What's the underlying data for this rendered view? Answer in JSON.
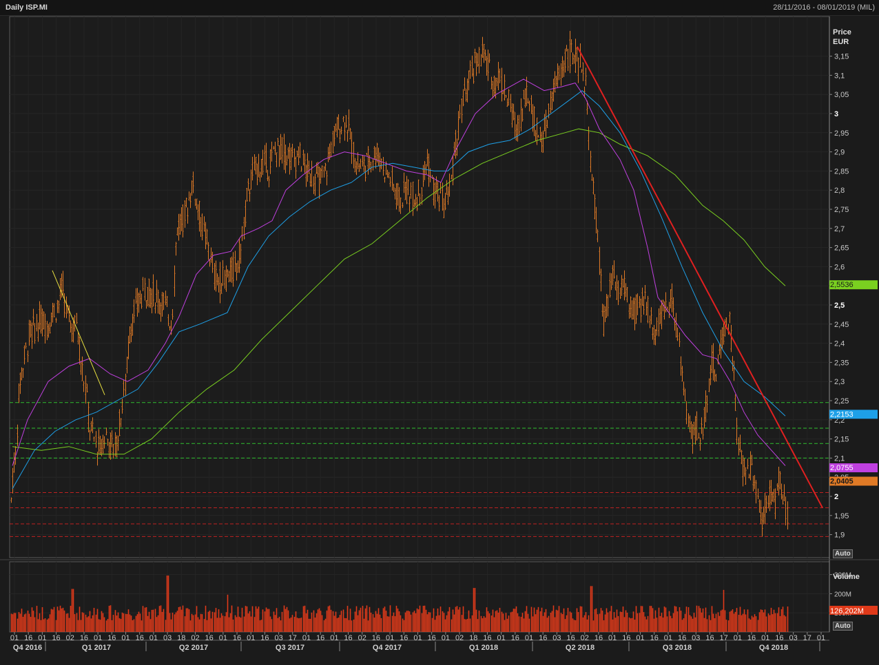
{
  "header": {
    "title": "Daily ISP.MI",
    "date_range": "28/11/2016 - 08/01/2019 (MIL)"
  },
  "controls": {
    "auto_price": "Auto",
    "auto_volume": "Auto"
  },
  "colors": {
    "candle": "#e07a26",
    "ma_short": "#c040e0",
    "ma_mid": "#1ea0e8",
    "ma_long": "#7ad020",
    "trend_red": "#e02020",
    "trend_yellow": "#e8e040",
    "support": "#30c030",
    "resistance": "#c02020",
    "volume": "#e03a1a"
  },
  "chart_data": {
    "type": "candlestick",
    "price_axis": {
      "label": "Price",
      "unit": "EUR",
      "ticks": [
        "3,15",
        "3,1",
        "3,05",
        "3",
        "2,95",
        "2,9",
        "2,85",
        "2,8",
        "2,75",
        "2,7",
        "2,65",
        "2,6",
        "2,55",
        "2,5",
        "2,45",
        "2,4",
        "2,35",
        "2,3",
        "2,25",
        "2,2",
        "2,15",
        "2,1",
        "2,05",
        "2",
        "1,95",
        "1,9"
      ],
      "bold_ticks": [
        "3",
        "2,5",
        "2"
      ],
      "range": [
        1.86,
        3.22
      ]
    },
    "volume_axis": {
      "label": "Volume",
      "ticks": [
        "300M",
        "200M",
        "100M"
      ],
      "range": [
        0,
        360
      ]
    },
    "x_axis": {
      "day_ticks": [
        "01",
        "16",
        "01",
        "16",
        "02",
        "16",
        "01",
        "16",
        "01",
        "16",
        "01",
        "03",
        "18",
        "02",
        "16",
        "01",
        "16",
        "01",
        "16",
        "03",
        "17",
        "01",
        "16",
        "01",
        "16",
        "02",
        "16",
        "01",
        "16",
        "01",
        "16",
        "01",
        "02",
        "18",
        "16",
        "01",
        "16",
        "01",
        "16",
        "03",
        "16",
        "02",
        "16",
        "01",
        "16",
        "01",
        "16",
        "01",
        "16",
        "03",
        "16",
        "17",
        "01",
        "16",
        "01",
        "16",
        "03",
        "17",
        "01"
      ],
      "quarters": [
        "Q4 2016",
        "Q1 2017",
        "Q2 2017",
        "Q3 2017",
        "Q4 2017",
        "Q1 2018",
        "Q2 2018",
        "Q3 2018",
        "Q4 2018"
      ]
    },
    "price_path": [
      [
        0,
        1.93
      ],
      [
        4,
        2.05
      ],
      [
        8,
        2.1
      ],
      [
        14,
        2.3
      ],
      [
        20,
        2.35
      ],
      [
        28,
        2.42
      ],
      [
        36,
        2.44
      ],
      [
        46,
        2.46
      ],
      [
        55,
        2.45
      ],
      [
        62,
        2.48
      ],
      [
        70,
        2.5
      ],
      [
        76,
        2.55
      ],
      [
        82,
        2.48
      ],
      [
        90,
        2.44
      ],
      [
        97,
        2.45
      ],
      [
        104,
        2.34
      ],
      [
        110,
        2.28
      ],
      [
        116,
        2.18
      ],
      [
        122,
        2.15
      ],
      [
        130,
        2.12
      ],
      [
        138,
        2.16
      ],
      [
        146,
        2.14
      ],
      [
        153,
        2.12
      ],
      [
        160,
        2.2
      ],
      [
        168,
        2.3
      ],
      [
        175,
        2.45
      ],
      [
        185,
        2.5
      ],
      [
        195,
        2.54
      ],
      [
        205,
        2.53
      ],
      [
        215,
        2.52
      ],
      [
        225,
        2.5
      ],
      [
        235,
        2.45
      ],
      [
        242,
        2.7
      ],
      [
        250,
        2.72
      ],
      [
        258,
        2.76
      ],
      [
        265,
        2.82
      ],
      [
        272,
        2.76
      ],
      [
        280,
        2.7
      ],
      [
        288,
        2.65
      ],
      [
        296,
        2.58
      ],
      [
        304,
        2.56
      ],
      [
        312,
        2.57
      ],
      [
        320,
        2.58
      ],
      [
        328,
        2.6
      ],
      [
        336,
        2.65
      ],
      [
        344,
        2.78
      ],
      [
        352,
        2.84
      ],
      [
        360,
        2.86
      ],
      [
        368,
        2.87
      ],
      [
        376,
        2.86
      ],
      [
        384,
        2.9
      ],
      [
        392,
        2.91
      ],
      [
        400,
        2.9
      ],
      [
        410,
        2.88
      ],
      [
        420,
        2.89
      ],
      [
        430,
        2.85
      ],
      [
        440,
        2.84
      ],
      [
        450,
        2.82
      ],
      [
        458,
        2.85
      ],
      [
        465,
        2.9
      ],
      [
        472,
        2.95
      ],
      [
        480,
        2.97
      ],
      [
        488,
        2.99
      ],
      [
        495,
        2.93
      ],
      [
        502,
        2.87
      ],
      [
        510,
        2.86
      ],
      [
        518,
        2.87
      ],
      [
        526,
        2.89
      ],
      [
        534,
        2.9
      ],
      [
        542,
        2.86
      ],
      [
        550,
        2.84
      ],
      [
        558,
        2.8
      ],
      [
        566,
        2.77
      ],
      [
        574,
        2.8
      ],
      [
        582,
        2.79
      ],
      [
        590,
        2.78
      ],
      [
        598,
        2.82
      ],
      [
        606,
        2.88
      ],
      [
        614,
        2.8
      ],
      [
        622,
        2.79
      ],
      [
        630,
        2.76
      ],
      [
        638,
        2.8
      ],
      [
        646,
        2.9
      ],
      [
        654,
        3.0
      ],
      [
        662,
        3.06
      ],
      [
        670,
        3.1
      ],
      [
        678,
        3.14
      ],
      [
        686,
        3.16
      ],
      [
        694,
        3.12
      ],
      [
        702,
        3.08
      ],
      [
        710,
        3.1
      ],
      [
        718,
        3.06
      ],
      [
        726,
        3.02
      ],
      [
        734,
        2.96
      ],
      [
        742,
        3.0
      ],
      [
        750,
        3.06
      ],
      [
        758,
        3.0
      ],
      [
        766,
        2.95
      ],
      [
        774,
        2.93
      ],
      [
        782,
        3.0
      ],
      [
        790,
        3.06
      ],
      [
        798,
        3.1
      ],
      [
        806,
        3.15
      ],
      [
        814,
        3.16
      ],
      [
        822,
        3.14
      ],
      [
        830,
        3.12
      ],
      [
        838,
        3.05
      ],
      [
        844,
        2.82
      ],
      [
        850,
        2.75
      ],
      [
        856,
        2.6
      ],
      [
        862,
        2.45
      ],
      [
        868,
        2.5
      ],
      [
        875,
        2.58
      ],
      [
        882,
        2.52
      ],
      [
        890,
        2.56
      ],
      [
        898,
        2.5
      ],
      [
        906,
        2.47
      ],
      [
        914,
        2.5
      ],
      [
        922,
        2.52
      ],
      [
        930,
        2.46
      ],
      [
        938,
        2.43
      ],
      [
        946,
        2.47
      ],
      [
        954,
        2.5
      ],
      [
        960,
        2.55
      ],
      [
        966,
        2.44
      ],
      [
        972,
        2.4
      ],
      [
        978,
        2.28
      ],
      [
        984,
        2.2
      ],
      [
        990,
        2.16
      ],
      [
        996,
        2.18
      ],
      [
        1002,
        2.15
      ],
      [
        1008,
        2.2
      ],
      [
        1014,
        2.3
      ],
      [
        1020,
        2.35
      ],
      [
        1026,
        2.32
      ],
      [
        1032,
        2.4
      ],
      [
        1038,
        2.45
      ],
      [
        1044,
        2.46
      ],
      [
        1050,
        2.35
      ],
      [
        1056,
        2.14
      ],
      [
        1062,
        2.1
      ],
      [
        1068,
        2.05
      ],
      [
        1074,
        2.08
      ],
      [
        1080,
        2.06
      ],
      [
        1086,
        2.0
      ],
      [
        1092,
        1.94
      ],
      [
        1098,
        1.99
      ],
      [
        1104,
        2.02
      ],
      [
        1110,
        1.97
      ],
      [
        1116,
        2.05
      ],
      [
        1122,
        2.0
      ],
      [
        1128,
        1.95
      ],
      [
        1134,
        1.9
      ],
      [
        1140,
        1.96
      ],
      [
        1144,
        2.04
      ]
    ],
    "ma_short": [
      [
        18,
        2.08
      ],
      [
        40,
        2.2
      ],
      [
        70,
        2.3
      ],
      [
        100,
        2.34
      ],
      [
        130,
        2.36
      ],
      [
        160,
        2.32
      ],
      [
        185,
        2.3
      ],
      [
        215,
        2.33
      ],
      [
        240,
        2.4
      ],
      [
        260,
        2.47
      ],
      [
        285,
        2.58
      ],
      [
        310,
        2.63
      ],
      [
        335,
        2.64
      ],
      [
        350,
        2.68
      ],
      [
        375,
        2.7
      ],
      [
        395,
        2.72
      ],
      [
        415,
        2.8
      ],
      [
        440,
        2.84
      ],
      [
        470,
        2.88
      ],
      [
        500,
        2.9
      ],
      [
        530,
        2.89
      ],
      [
        560,
        2.87
      ],
      [
        590,
        2.85
      ],
      [
        620,
        2.84
      ],
      [
        640,
        2.82
      ],
      [
        660,
        2.9
      ],
      [
        690,
        3.0
      ],
      [
        720,
        3.05
      ],
      [
        740,
        3.07
      ],
      [
        760,
        3.09
      ],
      [
        790,
        3.06
      ],
      [
        815,
        3.07
      ],
      [
        835,
        3.08
      ],
      [
        850,
        3.04
      ],
      [
        870,
        2.96
      ],
      [
        900,
        2.88
      ],
      [
        920,
        2.8
      ],
      [
        940,
        2.65
      ],
      [
        955,
        2.52
      ],
      [
        975,
        2.47
      ],
      [
        995,
        2.42
      ],
      [
        1020,
        2.37
      ],
      [
        1040,
        2.36
      ],
      [
        1060,
        2.3
      ],
      [
        1080,
        2.22
      ],
      [
        1100,
        2.16
      ],
      [
        1120,
        2.12
      ],
      [
        1140,
        2.08
      ]
    ],
    "ma_mid": [
      [
        18,
        2.02
      ],
      [
        50,
        2.12
      ],
      [
        80,
        2.17
      ],
      [
        110,
        2.2
      ],
      [
        140,
        2.22
      ],
      [
        170,
        2.25
      ],
      [
        200,
        2.28
      ],
      [
        230,
        2.35
      ],
      [
        260,
        2.43
      ],
      [
        290,
        2.45
      ],
      [
        330,
        2.48
      ],
      [
        360,
        2.6
      ],
      [
        390,
        2.68
      ],
      [
        420,
        2.73
      ],
      [
        450,
        2.77
      ],
      [
        480,
        2.8
      ],
      [
        510,
        2.82
      ],
      [
        540,
        2.86
      ],
      [
        570,
        2.87
      ],
      [
        600,
        2.86
      ],
      [
        630,
        2.85
      ],
      [
        650,
        2.85
      ],
      [
        680,
        2.9
      ],
      [
        710,
        2.92
      ],
      [
        740,
        2.93
      ],
      [
        770,
        2.96
      ],
      [
        800,
        3.0
      ],
      [
        830,
        3.04
      ],
      [
        845,
        3.06
      ],
      [
        870,
        3.02
      ],
      [
        900,
        2.95
      ],
      [
        930,
        2.85
      ],
      [
        960,
        2.73
      ],
      [
        990,
        2.6
      ],
      [
        1020,
        2.48
      ],
      [
        1050,
        2.38
      ],
      [
        1080,
        2.3
      ],
      [
        1110,
        2.26
      ],
      [
        1140,
        2.21
      ]
    ],
    "ma_long": [
      [
        18,
        2.13
      ],
      [
        60,
        2.12
      ],
      [
        100,
        2.13
      ],
      [
        140,
        2.11
      ],
      [
        180,
        2.11
      ],
      [
        220,
        2.15
      ],
      [
        260,
        2.22
      ],
      [
        300,
        2.28
      ],
      [
        340,
        2.33
      ],
      [
        380,
        2.41
      ],
      [
        420,
        2.48
      ],
      [
        460,
        2.55
      ],
      [
        500,
        2.62
      ],
      [
        540,
        2.66
      ],
      [
        580,
        2.72
      ],
      [
        620,
        2.78
      ],
      [
        660,
        2.83
      ],
      [
        700,
        2.87
      ],
      [
        740,
        2.9
      ],
      [
        780,
        2.93
      ],
      [
        820,
        2.95
      ],
      [
        840,
        2.96
      ],
      [
        870,
        2.95
      ],
      [
        900,
        2.92
      ],
      [
        940,
        2.89
      ],
      [
        980,
        2.84
      ],
      [
        1020,
        2.76
      ],
      [
        1050,
        2.72
      ],
      [
        1080,
        2.67
      ],
      [
        1110,
        2.6
      ],
      [
        1140,
        2.55
      ]
    ],
    "last_values": [
      {
        "label": "2,5536",
        "color": "#7ad020",
        "value": 2.5536
      },
      {
        "label": "2,2153",
        "color": "#1ea0e8",
        "value": 2.2153
      },
      {
        "label": "2,0755",
        "color": "#c040e0",
        "value": 2.0755
      },
      {
        "label": "2,0405",
        "color": "#e07a26",
        "value": 2.0405
      }
    ],
    "support_lines": [
      2.245,
      2.178,
      2.138,
      2.1
    ],
    "resistance_lines": [
      2.01,
      1.97,
      1.928,
      1.895
    ],
    "trendlines": [
      {
        "color": "#e02020",
        "from": [
          838,
          3.175
        ],
        "to": [
          1194,
          1.97
        ]
      },
      {
        "color": "#e8e040",
        "from": [
          76,
          2.59
        ],
        "to": [
          152,
          2.265
        ]
      }
    ],
    "volume_last": "126,202M",
    "volume_spikes": [
      [
        105,
        165
      ],
      [
        242,
        235
      ],
      [
        330,
        135
      ],
      [
        688,
        170
      ],
      [
        858,
        180
      ],
      [
        1050,
        160
      ]
    ]
  }
}
